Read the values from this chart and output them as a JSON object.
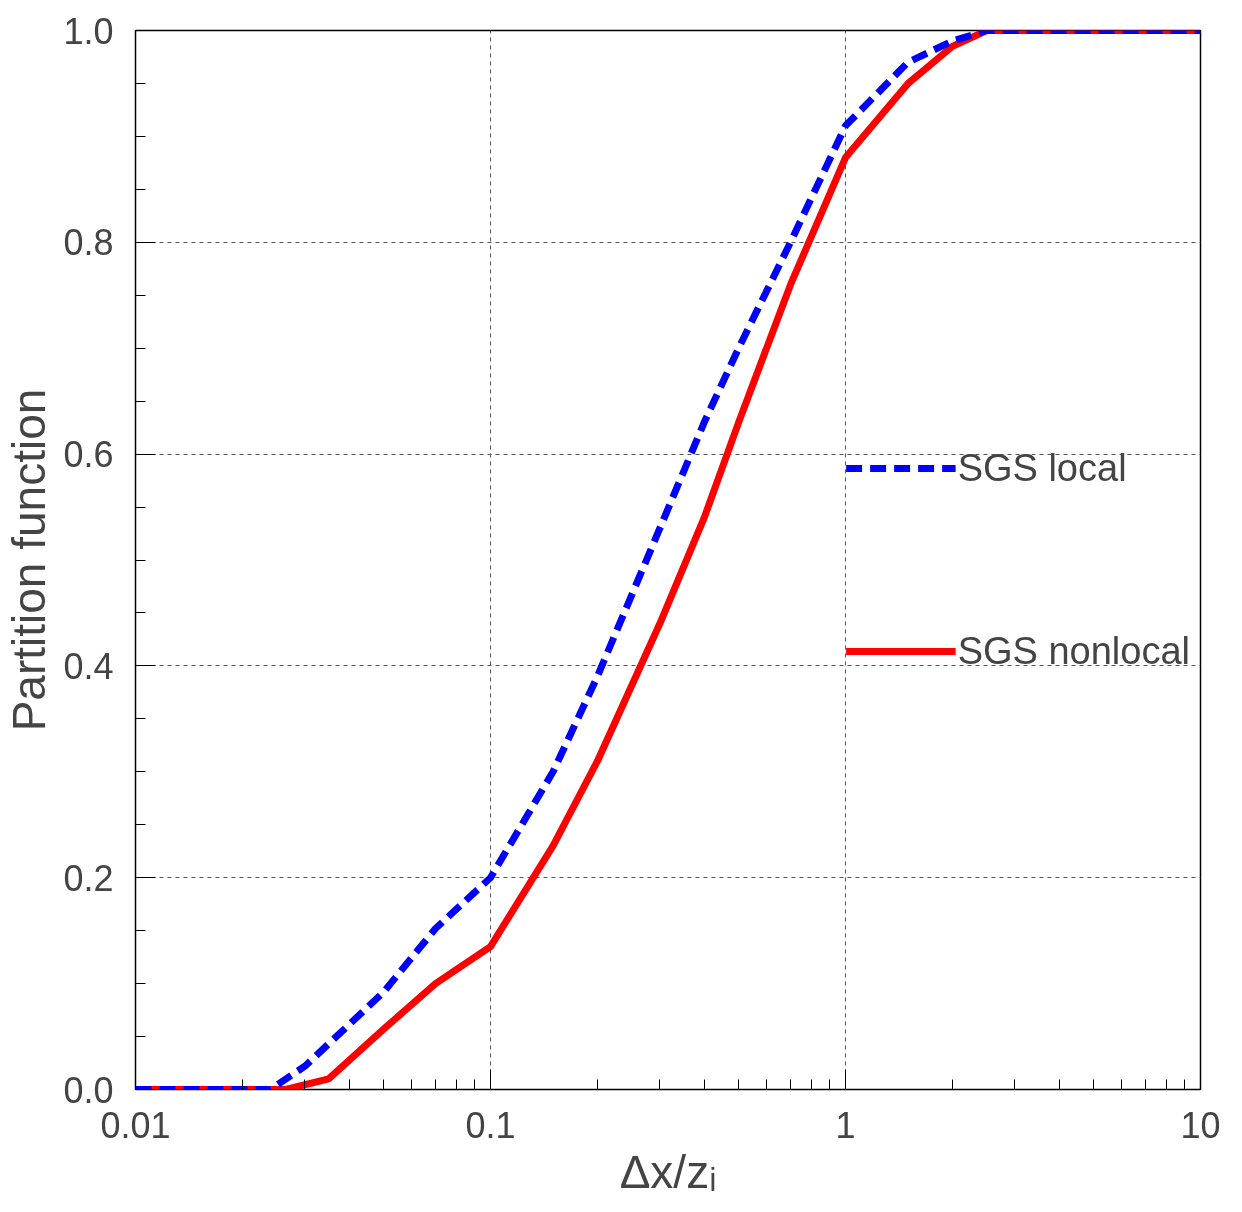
{
  "chart_data": {
    "type": "line",
    "xlabel": "Δx/zᵢ",
    "ylabel": "Partition function",
    "log": "x",
    "xlim": [
      0.01,
      10
    ],
    "ylim": [
      0,
      1
    ],
    "xticks": [
      0.01,
      0.1,
      1,
      10
    ],
    "yticks": [
      {
        "value": 0,
        "label": "0.0"
      },
      {
        "value": 0.2,
        "label": "0.2"
      },
      {
        "value": 0.4,
        "label": "0.4"
      },
      {
        "value": 0.6,
        "label": "0.6"
      },
      {
        "value": 0.8,
        "label": "0.8"
      },
      {
        "value": 1,
        "label": "1.0"
      }
    ],
    "grid": true,
    "legend": "right",
    "marker": "none",
    "series": [
      {
        "name": "SGS local",
        "color": "#0000ff",
        "line_style": "dashed",
        "x": [
          0.01,
          0.024,
          0.03,
          0.05,
          0.07,
          0.1,
          0.15,
          0.2,
          0.3,
          0.4,
          0.5,
          0.7,
          1,
          1.5,
          2,
          2.5,
          10
        ],
        "values": [
          0,
          0,
          0.022,
          0.092,
          0.152,
          0.2,
          0.3,
          0.39,
          0.53,
          0.63,
          0.7,
          0.8,
          0.91,
          0.97,
          0.99,
          1,
          1
        ]
      },
      {
        "name": "SGS nonlocal",
        "color": "#ff0000",
        "line_style": "solid",
        "x": [
          0.01,
          0.0265,
          0.035,
          0.05,
          0.07,
          0.1,
          0.15,
          0.2,
          0.3,
          0.4,
          0.5,
          0.7,
          1,
          1.5,
          2,
          2.5,
          10
        ],
        "values": [
          0,
          0,
          0.01,
          0.057,
          0.1,
          0.135,
          0.23,
          0.31,
          0.44,
          0.54,
          0.63,
          0.76,
          0.88,
          0.95,
          0.985,
          1,
          1
        ]
      }
    ]
  }
}
